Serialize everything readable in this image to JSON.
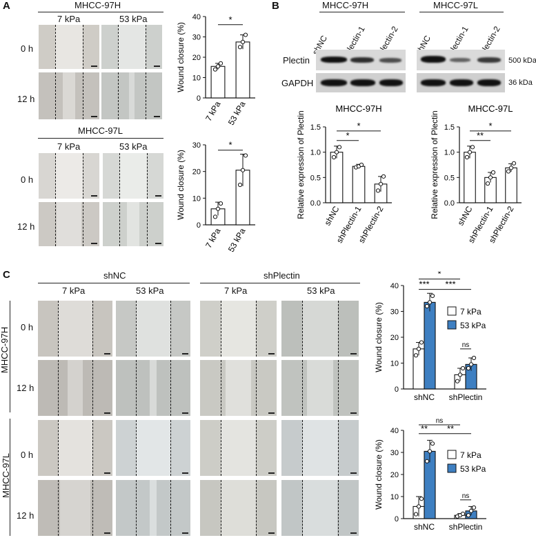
{
  "panels": {
    "a": "A",
    "b": "B",
    "c": "C"
  },
  "a": {
    "top": {
      "cell": "MHCC-97H",
      "cond1": "7 kPa",
      "cond2": "53 kPa",
      "t0": "0 h",
      "t12": "12 h"
    },
    "bottom": {
      "cell": "MHCC-97L",
      "cond1": "7 kPa",
      "cond2": "53 kPa",
      "t0": "0 h",
      "t12": "12 h"
    }
  },
  "b": {
    "cell_h": "MHCC-97H",
    "cell_l": "MHCC-97L",
    "lanes": [
      "shNC",
      "shPlectin-1",
      "shPlectin-2"
    ],
    "row1": "Plectin",
    "row2": "GAPDH",
    "kda1": "500 kDa",
    "kda2": "36 kDa"
  },
  "c": {
    "group1": "shNC",
    "group2": "shPlectin",
    "cond1": "7 kPa",
    "cond2": "53 kPa",
    "row_cell1": "MHCC-97H",
    "row_cell2": "MHCC-97L",
    "t0": "0 h",
    "t12": "12 h"
  },
  "colors": {
    "bar_53": "#3e7fc1",
    "bar_7": "#ffffff",
    "stroke": "#111111"
  },
  "chart_data": [
    {
      "id": "a1",
      "type": "bar",
      "categories": [
        "7 kPa",
        "53 kPa"
      ],
      "values": [
        15.5,
        27.5
      ],
      "points": [
        [
          14,
          15.5,
          17
        ],
        [
          25,
          27.5,
          31
        ]
      ],
      "err": [
        1.5,
        3.5
      ],
      "ylabel": "Wound closure (%)",
      "ylim": [
        0,
        40
      ],
      "yticks": [
        0,
        10,
        20,
        30,
        40
      ],
      "sig": [
        "*"
      ]
    },
    {
      "id": "a2",
      "type": "bar",
      "categories": [
        "7 kPa",
        "53 kPa"
      ],
      "values": [
        6,
        20.5
      ],
      "points": [
        [
          3,
          6,
          8
        ],
        [
          15,
          20.5,
          26
        ]
      ],
      "err": [
        2.5,
        6
      ],
      "ylabel": "Wound closure (%)",
      "ylim": [
        0,
        30
      ],
      "yticks": [
        0,
        10,
        20,
        30
      ],
      "sig": [
        "*"
      ]
    },
    {
      "id": "b1",
      "type": "bar",
      "title": "MHCC-97H",
      "categories": [
        "shNC",
        "shPlectin-1",
        "shPlectin-2"
      ],
      "values": [
        1.0,
        0.72,
        0.37
      ],
      "points": [
        [
          0.9,
          1.0,
          1.1
        ],
        [
          0.7,
          0.72,
          0.75
        ],
        [
          0.24,
          0.37,
          0.52
        ]
      ],
      "err": [
        0.12,
        0.04,
        0.15
      ],
      "ylabel": "Relative expression of Plectin",
      "ylim": [
        0,
        1.5
      ],
      "yticks": [
        0.0,
        0.5,
        1.0,
        1.5
      ],
      "sig": [
        "*",
        "*"
      ]
    },
    {
      "id": "b2",
      "type": "bar",
      "title": "MHCC-97L",
      "categories": [
        "shNC",
        "shPlectin-1",
        "shPlectin-2"
      ],
      "values": [
        1.0,
        0.5,
        0.69
      ],
      "points": [
        [
          0.9,
          1.0,
          1.1
        ],
        [
          0.38,
          0.5,
          0.6
        ],
        [
          0.62,
          0.69,
          0.78
        ]
      ],
      "err": [
        0.12,
        0.1,
        0.08
      ],
      "ylabel": "Relative expression of Plectin",
      "ylim": [
        0,
        1.5
      ],
      "yticks": [
        0.0,
        0.5,
        1.0,
        1.5
      ],
      "sig": [
        "**",
        "*"
      ]
    },
    {
      "id": "c1",
      "type": "bar",
      "categories": [
        "shNC",
        "shPlectin"
      ],
      "series": [
        {
          "name": "7 kPa",
          "values": [
            15.5,
            5.5
          ],
          "points": [
            [
              13,
              15.5,
              18
            ],
            [
              3,
              5.5,
              8
            ]
          ],
          "err": [
            2.5,
            2.5
          ]
        },
        {
          "name": "53 kPa",
          "values": [
            33.5,
            9.5
          ],
          "points": [
            [
              32,
              33.5,
              36
            ],
            [
              8,
              9.5,
              12
            ]
          ],
          "err": [
            3.5,
            2.5
          ]
        }
      ],
      "ylabel": "Wound closure (%)",
      "ylim": [
        0,
        40
      ],
      "yticks": [
        0,
        10,
        20,
        30,
        40
      ],
      "sig": [
        "*",
        "***",
        "***",
        "ns"
      ]
    },
    {
      "id": "c2",
      "type": "bar",
      "categories": [
        "shNC",
        "shPlectin"
      ],
      "series": [
        {
          "name": "7 kPa",
          "values": [
            5.5,
            1.5
          ],
          "points": [
            [
              2,
              5.5,
              9
            ],
            [
              1,
              1.5,
              2.2
            ]
          ],
          "err": [
            4.5,
            0.8
          ]
        },
        {
          "name": "53 kPa",
          "values": [
            30.5,
            3.5
          ],
          "points": [
            [
              26,
              30.5,
              34
            ],
            [
              1.5,
              3.5,
              5
            ]
          ],
          "err": [
            5,
            2
          ]
        }
      ],
      "ylabel": "Wound closure (%)",
      "ylim": [
        0,
        40
      ],
      "yticks": [
        0,
        10,
        20,
        30,
        40
      ],
      "sig": [
        "ns",
        "**",
        "**",
        "ns"
      ]
    }
  ]
}
